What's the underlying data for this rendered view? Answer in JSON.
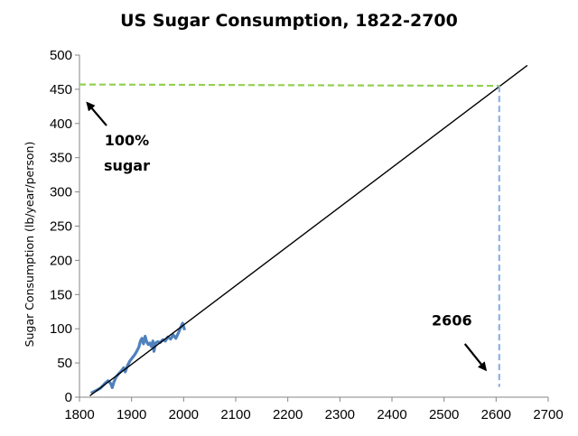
{
  "chart_data": {
    "type": "line",
    "title": "US Sugar Consumption, 1822-2700",
    "xlabel": "",
    "ylabel": "Sugar Consumption (lb/year/person)",
    "xlim": [
      1800,
      2700
    ],
    "ylim": [
      0,
      500
    ],
    "x_ticks": [
      1800,
      1900,
      2000,
      2100,
      2200,
      2300,
      2400,
      2500,
      2600,
      2700
    ],
    "y_ticks": [
      0,
      50,
      100,
      150,
      200,
      250,
      300,
      350,
      400,
      450,
      500
    ],
    "grid": false,
    "legend": "none",
    "series": [
      {
        "color": "#4f81bd",
        "style": "solid",
        "points": [
          [
            1822,
            6
          ],
          [
            1830,
            9
          ],
          [
            1835,
            11
          ],
          [
            1840,
            13
          ],
          [
            1845,
            17
          ],
          [
            1850,
            21
          ],
          [
            1855,
            24
          ],
          [
            1860,
            20
          ],
          [
            1863,
            14
          ],
          [
            1866,
            22
          ],
          [
            1870,
            29
          ],
          [
            1875,
            34
          ],
          [
            1880,
            38
          ],
          [
            1885,
            43
          ],
          [
            1888,
            37
          ],
          [
            1892,
            46
          ],
          [
            1897,
            53
          ],
          [
            1902,
            58
          ],
          [
            1906,
            62
          ],
          [
            1910,
            67
          ],
          [
            1914,
            73
          ],
          [
            1917,
            82
          ],
          [
            1920,
            86
          ],
          [
            1923,
            78
          ],
          [
            1926,
            89
          ],
          [
            1929,
            81
          ],
          [
            1932,
            77
          ],
          [
            1935,
            79
          ],
          [
            1938,
            74
          ],
          [
            1941,
            82
          ],
          [
            1943,
            67
          ],
          [
            1946,
            79
          ],
          [
            1950,
            81
          ],
          [
            1955,
            80
          ],
          [
            1960,
            84
          ],
          [
            1965,
            82
          ],
          [
            1970,
            88
          ],
          [
            1975,
            85
          ],
          [
            1980,
            91
          ],
          [
            1985,
            86
          ],
          [
            1990,
            94
          ],
          [
            1995,
            103
          ],
          [
            1998,
            108
          ],
          [
            2002,
            98
          ]
        ]
      },
      {
        "color": "#000000",
        "style": "solid",
        "points": [
          [
            1820,
            2
          ],
          [
            2660,
            485
          ]
        ]
      },
      {
        "color": "#92d050",
        "style": "dashed",
        "points": [
          [
            1800,
            457
          ],
          [
            2606,
            455
          ]
        ]
      },
      {
        "color": "#8db3e2",
        "style": "dashed",
        "points": [
          [
            2606,
            455
          ],
          [
            2606,
            15
          ]
        ]
      }
    ],
    "annotations": [
      {
        "lines": [
          "100%",
          "sugar"
        ],
        "text_at": [
          1891,
          368
        ],
        "arrow_from": [
          1852,
          397
        ],
        "arrow_to": [
          1815,
          430
        ]
      },
      {
        "lines": [
          "2606"
        ],
        "text_at": [
          2515,
          105
        ],
        "arrow_from": [
          2540,
          78
        ],
        "arrow_to": [
          2580,
          40
        ]
      }
    ]
  }
}
